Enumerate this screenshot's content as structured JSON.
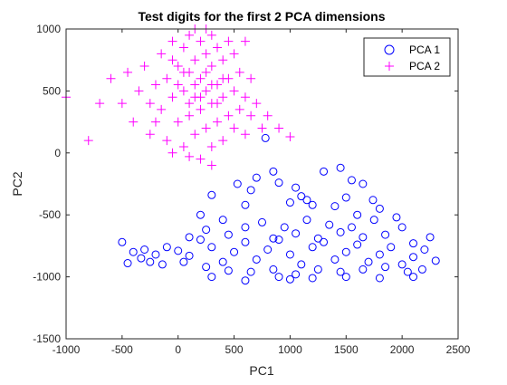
{
  "chart_data": {
    "type": "scatter",
    "title": "Test digits for the first 2 PCA dimensions",
    "xlabel": "PC1",
    "ylabel": "PC2",
    "xlim": [
      -1000,
      2500
    ],
    "ylim": [
      -1500,
      1000
    ],
    "xticks": [
      "-1000",
      "-500",
      "0",
      "500",
      "1000",
      "1500",
      "2000",
      "2500"
    ],
    "yticks": [
      "-1500",
      "-1000",
      "-500",
      "0",
      "500",
      "1000"
    ],
    "grid": false,
    "legend_position": "top-right",
    "series": [
      {
        "name": "PCA 1",
        "marker": "circle",
        "color": "#0000ff",
        "points": [
          [
            -500,
            -720
          ],
          [
            -400,
            -800
          ],
          [
            -300,
            -780
          ],
          [
            -200,
            -820
          ],
          [
            -100,
            -760
          ],
          [
            0,
            -790
          ],
          [
            100,
            -830
          ],
          [
            200,
            -700
          ],
          [
            300,
            -760
          ],
          [
            400,
            -880
          ],
          [
            500,
            -800
          ],
          [
            600,
            -720
          ],
          [
            700,
            -860
          ],
          [
            800,
            -780
          ],
          [
            900,
            -700
          ],
          [
            1000,
            -820
          ],
          [
            1100,
            -900
          ],
          [
            1200,
            -760
          ],
          [
            1300,
            -720
          ],
          [
            1400,
            -860
          ],
          [
            1500,
            -800
          ],
          [
            1600,
            -740
          ],
          [
            1700,
            -880
          ],
          [
            1800,
            -820
          ],
          [
            1900,
            -760
          ],
          [
            2000,
            -900
          ],
          [
            2100,
            -840
          ],
          [
            2200,
            -780
          ],
          [
            2300,
            -870
          ],
          [
            -330,
            -850
          ],
          [
            -140,
            -900
          ],
          [
            50,
            -880
          ],
          [
            250,
            -920
          ],
          [
            450,
            -950
          ],
          [
            650,
            -960
          ],
          [
            850,
            -940
          ],
          [
            1050,
            -980
          ],
          [
            1250,
            -940
          ],
          [
            1450,
            -960
          ],
          [
            1650,
            -940
          ],
          [
            1850,
            -920
          ],
          [
            2050,
            -960
          ],
          [
            2180,
            -940
          ],
          [
            -450,
            -890
          ],
          [
            -250,
            -880
          ],
          [
            300,
            -340
          ],
          [
            530,
            -250
          ],
          [
            600,
            -420
          ],
          [
            650,
            -300
          ],
          [
            700,
            -200
          ],
          [
            850,
            -150
          ],
          [
            900,
            -240
          ],
          [
            1050,
            -280
          ],
          [
            1100,
            -350
          ],
          [
            1150,
            -380
          ],
          [
            1300,
            -150
          ],
          [
            1450,
            -120
          ],
          [
            1550,
            -220
          ],
          [
            1650,
            -250
          ],
          [
            1740,
            -380
          ],
          [
            1400,
            -430
          ],
          [
            1000,
            -400
          ],
          [
            1200,
            -420
          ],
          [
            1500,
            -360
          ],
          [
            1800,
            -450
          ],
          [
            1950,
            -520
          ],
          [
            2000,
            -600
          ],
          [
            2250,
            -680
          ],
          [
            2100,
            -730
          ],
          [
            750,
            -560
          ],
          [
            950,
            -600
          ],
          [
            1150,
            -540
          ],
          [
            1350,
            -580
          ],
          [
            1550,
            -600
          ],
          [
            1750,
            -540
          ],
          [
            850,
            -690
          ],
          [
            1050,
            -650
          ],
          [
            1250,
            -690
          ],
          [
            1450,
            -640
          ],
          [
            1650,
            -680
          ],
          [
            1850,
            -660
          ],
          [
            200,
            -500
          ],
          [
            400,
            -540
          ],
          [
            600,
            -600
          ],
          [
            250,
            -620
          ],
          [
            450,
            -660
          ],
          [
            100,
            -680
          ],
          [
            780,
            120
          ],
          [
            1600,
            -500
          ],
          [
            300,
            -1000
          ],
          [
            600,
            -1030
          ],
          [
            900,
            -1000
          ],
          [
            1200,
            -1010
          ],
          [
            1500,
            -1000
          ],
          [
            1800,
            -1010
          ],
          [
            2100,
            -1000
          ],
          [
            1000,
            -1020
          ]
        ]
      },
      {
        "name": "PCA 2",
        "marker": "plus",
        "color": "#ff00ff",
        "points": [
          [
            -1000,
            450
          ],
          [
            -800,
            100
          ],
          [
            -700,
            400
          ],
          [
            -600,
            600
          ],
          [
            -500,
            400
          ],
          [
            -400,
            250
          ],
          [
            -300,
            700
          ],
          [
            -250,
            150
          ],
          [
            -200,
            550
          ],
          [
            -150,
            800
          ],
          [
            -150,
            350
          ],
          [
            -100,
            100
          ],
          [
            -100,
            600
          ],
          [
            -50,
            900
          ],
          [
            -50,
            450
          ],
          [
            0,
            250
          ],
          [
            0,
            700
          ],
          [
            50,
            50
          ],
          [
            50,
            500
          ],
          [
            50,
            850
          ],
          [
            100,
            300
          ],
          [
            100,
            650
          ],
          [
            100,
            950
          ],
          [
            150,
            150
          ],
          [
            150,
            450
          ],
          [
            150,
            750
          ],
          [
            200,
            -50
          ],
          [
            200,
            350
          ],
          [
            200,
            600
          ],
          [
            200,
            900
          ],
          [
            250,
            200
          ],
          [
            250,
            500
          ],
          [
            250,
            800
          ],
          [
            300,
            50
          ],
          [
            300,
            400
          ],
          [
            300,
            700
          ],
          [
            300,
            950
          ],
          [
            350,
            250
          ],
          [
            350,
            550
          ],
          [
            350,
            850
          ],
          [
            400,
            100
          ],
          [
            400,
            450
          ],
          [
            400,
            750
          ],
          [
            450,
            300
          ],
          [
            450,
            600
          ],
          [
            450,
            900
          ],
          [
            500,
            200
          ],
          [
            500,
            500
          ],
          [
            500,
            800
          ],
          [
            550,
            350
          ],
          [
            550,
            650
          ],
          [
            600,
            150
          ],
          [
            600,
            450
          ],
          [
            650,
            300
          ],
          [
            650,
            600
          ],
          [
            700,
            400
          ],
          [
            750,
            200
          ],
          [
            800,
            300
          ],
          [
            900,
            200
          ],
          [
            1000,
            130
          ],
          [
            -50,
            0
          ],
          [
            100,
            -30
          ],
          [
            300,
            -100
          ],
          [
            250,
            1000
          ],
          [
            150,
            1000
          ],
          [
            -350,
            500
          ],
          [
            -250,
            400
          ],
          [
            -450,
            650
          ],
          [
            -200,
            250
          ],
          [
            600,
            900
          ],
          [
            0,
            550
          ],
          [
            100,
            400
          ],
          [
            200,
            450
          ],
          [
            300,
            550
          ],
          [
            400,
            600
          ],
          [
            150,
            550
          ],
          [
            250,
            650
          ],
          [
            350,
            400
          ],
          [
            50,
            650
          ],
          [
            -50,
            750
          ]
        ]
      }
    ]
  }
}
